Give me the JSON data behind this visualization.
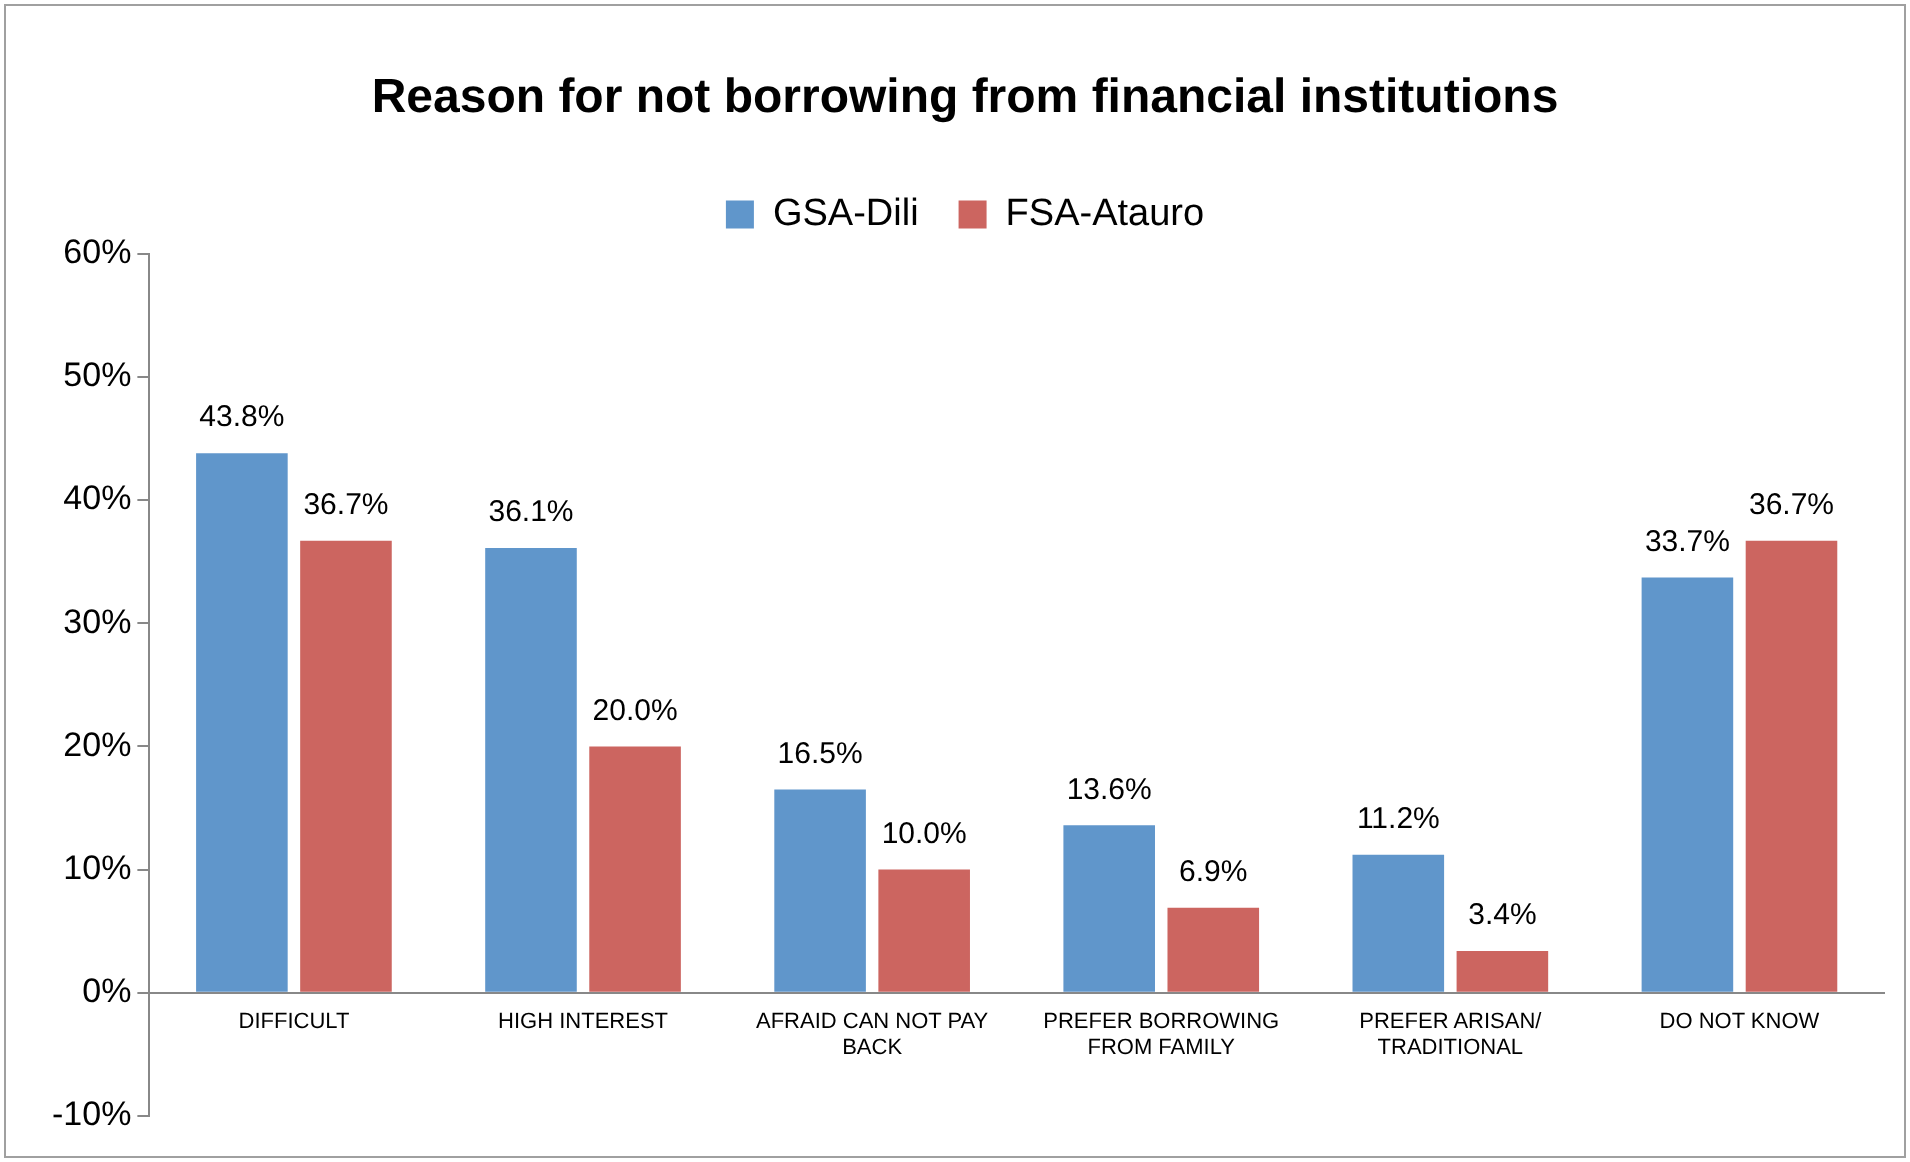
{
  "chart_data": {
    "type": "bar",
    "title": "Reason for not borrowing from financial institutions",
    "categories": [
      "DIFFICULT",
      "HIGH INTEREST",
      "AFRAID CAN NOT PAY BACK",
      "PREFER BORROWING FROM FAMILY",
      "PREFER ARISAN/ TRADITIONAL",
      "DO NOT KNOW"
    ],
    "series": [
      {
        "name": "GSA-Dili",
        "color": "#6096cb",
        "values": [
          43.8,
          36.1,
          16.5,
          13.6,
          11.2,
          33.7
        ],
        "value_labels": [
          "43.8%",
          "36.1%",
          "16.5%",
          "13.6%",
          "11.2%",
          "33.7%"
        ]
      },
      {
        "name": "FSA-Atauro",
        "color": "#cc6560",
        "values": [
          36.7,
          20.0,
          10.0,
          6.9,
          3.4,
          36.7
        ],
        "value_labels": [
          "36.7%",
          "20.0%",
          "10.0%",
          "6.9%",
          "3.4%",
          "36.7%"
        ]
      }
    ],
    "ylim": [
      -10,
      60
    ],
    "yticks": [
      {
        "value": -10,
        "label": "-10%"
      },
      {
        "value": 0,
        "label": "0%"
      },
      {
        "value": 10,
        "label": "10%"
      },
      {
        "value": 20,
        "label": "20%"
      },
      {
        "value": 30,
        "label": "30%"
      },
      {
        "value": 40,
        "label": "40%"
      },
      {
        "value": 50,
        "label": "50%"
      },
      {
        "value": 60,
        "label": "60%"
      }
    ],
    "grid": false,
    "legend": "top"
  }
}
